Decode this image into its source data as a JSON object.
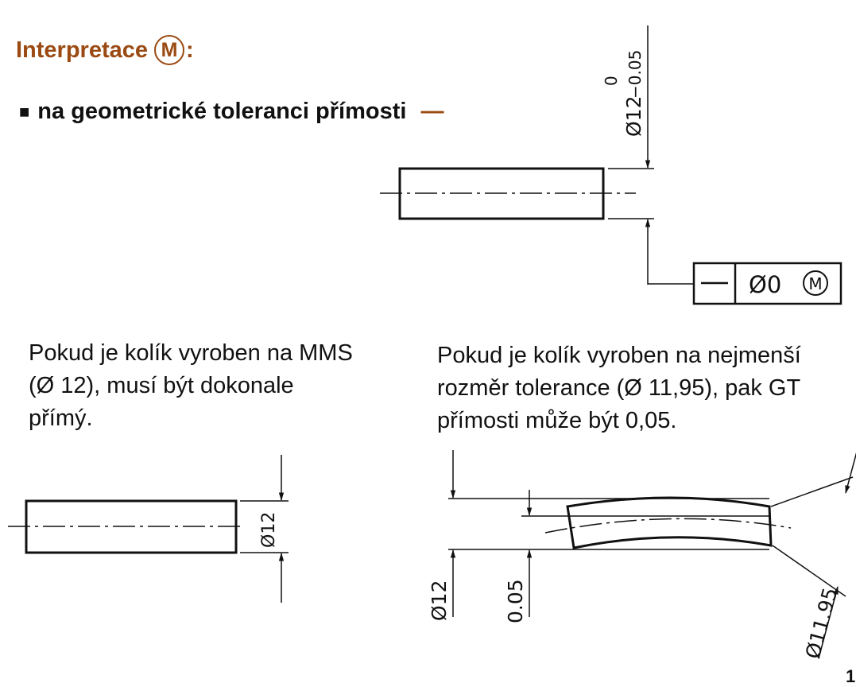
{
  "heading": {
    "text": "Interpretace",
    "symbol": "M",
    "suffix": ":"
  },
  "bullet": {
    "marker": "■",
    "text": "na geometrické toleranci přímosti",
    "symbol": "—"
  },
  "top_drawing": {
    "dimension_main": "Ø12",
    "tolerance_upper": "0",
    "tolerance_lower": "−0.05",
    "frame_symbol": "—",
    "frame_value": "Ø0",
    "frame_modifier": "M"
  },
  "left_text": "Pokud je kolík vyroben na MMS (Ø 12), musí být dokonale přímý.",
  "right_text": "Pokud je kolík vyroben na nejmenší rozměr tolerance (Ø 11,95), pak GT přímosti může být 0,05.",
  "left_drawing": {
    "dimension": "Ø12"
  },
  "right_drawing": {
    "dimension_envelope": "Ø12",
    "dimension_straightness": "0.05",
    "dimension_diameter": "Ø11.95"
  },
  "page_number": "1"
}
